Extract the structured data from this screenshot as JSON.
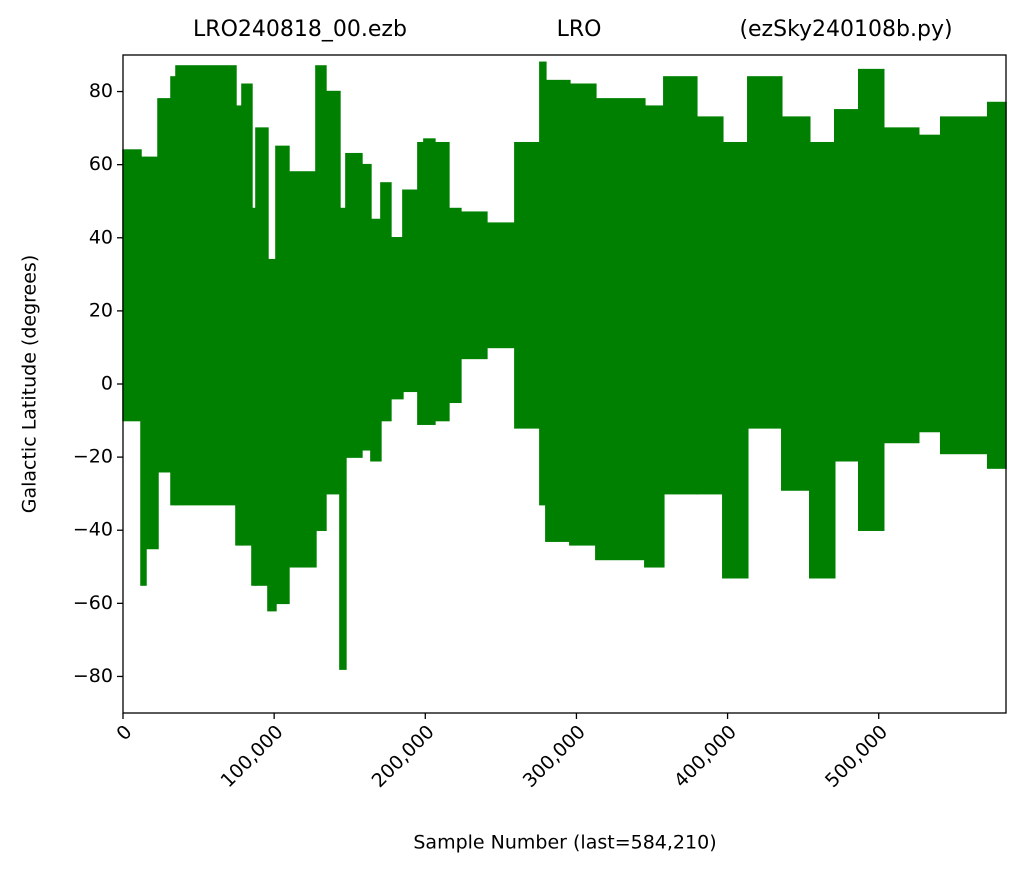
{
  "chart_data": {
    "type": "range",
    "title_left": "LRO240818_00.ezb",
    "title": "LRO",
    "title_right": "(ezSky240108b.py)",
    "xlabel": "Sample Number (last=584,210)",
    "ylabel": "Galactic Latitude (degrees)",
    "color": "#008000",
    "bins": [
      0,
      11905,
      15212,
      23149,
      31747,
      35054,
      74736,
      78704,
      85317,
      87963,
      95903,
      101194,
      109792,
      127650,
      134263,
      143522,
      147491,
      158073,
      164026,
      170640,
      177254,
      185190,
      195111,
      199080,
      206355,
      215614,
      223551,
      240747,
      259266,
      275800,
      279770,
      295643,
      312840,
      345247,
      357814,
      379640,
      396836,
      413370,
      435858,
      454376,
      470911,
      486784,
      503319,
      526467,
      541018,
      572104,
      584210
    ],
    "high": [
      64,
      62,
      62,
      78,
      84,
      87,
      76,
      82,
      48,
      70,
      34,
      65,
      58,
      87,
      80,
      48,
      63,
      60,
      45,
      55,
      40,
      53,
      66,
      67,
      66,
      48,
      47,
      44,
      66,
      88,
      83,
      82,
      78,
      76,
      84,
      73,
      66,
      84,
      73,
      66,
      75,
      86,
      70,
      68,
      73,
      77
    ],
    "low": [
      -10,
      -55,
      -45,
      -24,
      -33,
      -33,
      -44,
      -44,
      -55,
      -55,
      -62,
      -60,
      -50,
      -40,
      -30,
      -78,
      -20,
      -18,
      -21,
      -10,
      -4,
      -2,
      -11,
      -11,
      -10,
      -5,
      7,
      10,
      -12,
      -33,
      -43,
      -44,
      -48,
      -50,
      -30,
      -30,
      -53,
      -12,
      -29,
      -53,
      -21,
      -40,
      -16,
      -13,
      -19,
      -23
    ],
    "xlim": [
      0,
      584210
    ],
    "xticks": [
      0,
      {
        "value": 100000,
        "label": "100,000"
      },
      {
        "value": 200000,
        "label": "200,000"
      },
      {
        "value": 300000,
        "label": "300,000"
      },
      {
        "value": 400000,
        "label": "400,000"
      },
      {
        "value": 500000,
        "label": "500,000"
      }
    ],
    "ylim": [
      -90,
      90
    ],
    "yticks": [
      {
        "value": -80,
        "label": "−80"
      },
      {
        "value": -60,
        "label": "−60"
      },
      {
        "value": -40,
        "label": "−40"
      },
      {
        "value": -20,
        "label": "−20"
      },
      0,
      20,
      40,
      60,
      80
    ],
    "grid": false
  }
}
